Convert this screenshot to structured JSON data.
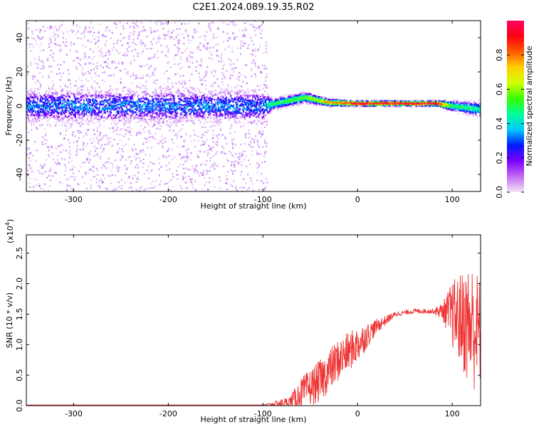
{
  "title": "C2E1.2024.089.19.35.R02",
  "chart_data": [
    {
      "type": "heatmap",
      "xlabel": "Height of straight line (km)",
      "ylabel": "Frequency (Hz)",
      "xlim": [
        -350,
        130
      ],
      "ylim": [
        -50,
        50
      ],
      "xticks": [
        -300,
        -200,
        -100,
        0,
        100
      ],
      "yticks": [
        -40,
        -20,
        0,
        20,
        40
      ],
      "colorbar": {
        "label": "Normalized spectral amplitude",
        "range": [
          0.0,
          1.0
        ],
        "ticks": [
          "0.0",
          "0.2",
          "0.4",
          "0.6",
          "0.8"
        ],
        "colormap": [
          "#f0e6f7",
          "#c36cf0",
          "#7d00ff",
          "#0019ff",
          "#00c8ff",
          "#00ff9c",
          "#36ff00",
          "#d2ff00",
          "#ffd000",
          "#ff5a00",
          "#ff0010",
          "#ff0066"
        ]
      },
      "trace_profile": [
        {
          "x": -350,
          "center": 0,
          "half_width": 9,
          "peak": 0.35
        },
        {
          "x": -100,
          "center": 0,
          "half_width": 9,
          "peak": 0.35
        },
        {
          "x": -90,
          "center": 1,
          "half_width": 3,
          "peak": 0.5
        },
        {
          "x": -55,
          "center": 5,
          "half_width": 3,
          "peak": 0.55
        },
        {
          "x": -30,
          "center": 2,
          "half_width": 2,
          "peak": 0.75
        },
        {
          "x": 0,
          "center": 1.5,
          "half_width": 1.5,
          "peak": 1.0
        },
        {
          "x": 85,
          "center": 1.5,
          "half_width": 1.5,
          "peak": 1.0
        },
        {
          "x": 100,
          "center": 0,
          "half_width": 3,
          "peak": 0.5
        },
        {
          "x": 130,
          "center": -2,
          "half_width": 4,
          "peak": 0.45
        }
      ]
    },
    {
      "type": "line",
      "xlabel": "Height of straight line (km)",
      "ylabel": "SNR (10 * v/v)",
      "y_multiplier": "(x10",
      "y_multiplier_exp": "4",
      "y_multiplier_close": ")",
      "xlim": [
        -350,
        130
      ],
      "ylim": [
        0,
        2.8
      ],
      "xticks": [
        -300,
        -200,
        -100,
        0,
        100
      ],
      "yticks": [
        "0.0",
        "0.5",
        "1.0",
        "1.5",
        "2.0",
        "2.5"
      ],
      "series": [
        {
          "color": "#ee3333",
          "x": [
            -350,
            -100,
            -72,
            -60,
            -40,
            -20,
            0,
            20,
            40,
            60,
            80,
            90,
            100,
            110,
            120,
            130
          ],
          "y": [
            0.01,
            0.01,
            0.05,
            0.2,
            0.4,
            0.75,
            1.0,
            1.3,
            1.5,
            1.55,
            1.55,
            1.55,
            1.5,
            1.4,
            1.3,
            1.2
          ],
          "noise": [
            0.0,
            0.0,
            0.1,
            0.25,
            0.35,
            0.35,
            0.3,
            0.12,
            0.04,
            0.04,
            0.04,
            0.15,
            0.55,
            0.8,
            1.1,
            0.9
          ]
        }
      ]
    }
  ]
}
